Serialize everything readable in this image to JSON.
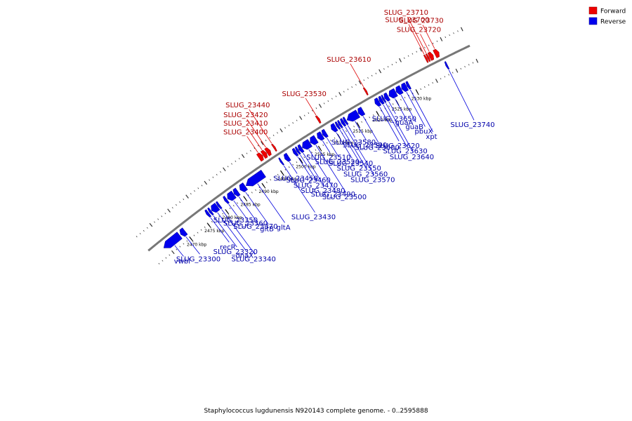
{
  "legend": {
    "forward": {
      "label": "Forward",
      "color": "#ee0000"
    },
    "reverse": {
      "label": "Reverse",
      "color": "#0000ee"
    }
  },
  "caption": "Staphylococcus lugdunensis N920143 complete genome. - 0..2595888",
  "axis": {
    "unit": "kbp",
    "ticks": [
      {
        "kbp": 2470,
        "label": "2470 kbp"
      },
      {
        "kbp": 2475,
        "label": "2475 kbp"
      },
      {
        "kbp": 2480,
        "label": "2480 kbp"
      },
      {
        "kbp": 2485,
        "label": "2485 kbp"
      },
      {
        "kbp": 2490,
        "label": "2490 kbp"
      },
      {
        "kbp": 2495,
        "label": "2495 kbp"
      },
      {
        "kbp": 2500,
        "label": "2500 kbp"
      },
      {
        "kbp": 2505,
        "label": "2505 kbp"
      },
      {
        "kbp": 2510,
        "label": "2510 kbp"
      },
      {
        "kbp": 2515,
        "label": "2515 kbp"
      },
      {
        "kbp": 2520,
        "label": "2520 kbp"
      },
      {
        "kbp": 2525,
        "label": "2525 kbp"
      },
      {
        "kbp": 2530,
        "label": "2530 kbp"
      }
    ]
  },
  "genes": [
    {
      "name": "vwbl",
      "strand": "reverse",
      "start": 2464.0,
      "end": 2468.5
    },
    {
      "name": "SLUG_23300",
      "strand": "reverse",
      "start": 2468.8,
      "end": 2470.0
    },
    {
      "name": "recR",
      "strand": "reverse",
      "start": 2476.0,
      "end": 2476.6
    },
    {
      "name": "SLUG_23320",
      "strand": "reverse",
      "start": 2476.8,
      "end": 2477.3
    },
    {
      "name": "dnaX",
      "strand": "reverse",
      "start": 2477.4,
      "end": 2479.0
    },
    {
      "name": "SLUG_23340",
      "strand": "reverse",
      "start": 2479.1,
      "end": 2479.6
    },
    {
      "name": "SLUG_23350",
      "strand": "reverse",
      "start": 2481.0,
      "end": 2481.6
    },
    {
      "name": "SLUG_23360",
      "strand": "reverse",
      "start": 2481.8,
      "end": 2483.5
    },
    {
      "name": "SLUG_23370",
      "strand": "reverse",
      "start": 2483.6,
      "end": 2484.6
    },
    {
      "name": "gltB",
      "strand": "reverse",
      "start": 2485.2,
      "end": 2486.6
    },
    {
      "name": "gltA",
      "strand": "reverse",
      "start": 2486.8,
      "end": 2491.5
    },
    {
      "name": "SLUG_23400",
      "strand": "forward",
      "start": 2492.6,
      "end": 2493.6
    },
    {
      "name": "SLUG_23410",
      "strand": "forward",
      "start": 2493.7,
      "end": 2494.6
    },
    {
      "name": "SLUG_23420",
      "strand": "forward",
      "start": 2494.7,
      "end": 2495.6
    },
    {
      "name": "SLUG_23430",
      "strand": "reverse",
      "start": 2496.0,
      "end": 2496.4
    },
    {
      "name": "SLUG_23440",
      "strand": "forward",
      "start": 2496.5,
      "end": 2496.9
    },
    {
      "name": "SLUG_23450",
      "strand": "reverse",
      "start": 2497.2,
      "end": 2498.2
    },
    {
      "name": "SLUG_23460",
      "strand": "reverse",
      "start": 2499.5,
      "end": 2500.2
    },
    {
      "name": "SLUG_23470",
      "strand": "reverse",
      "start": 2500.3,
      "end": 2500.8
    },
    {
      "name": "SLUG_23480",
      "strand": "reverse",
      "start": 2500.9,
      "end": 2501.7
    },
    {
      "name": "SLUG_23490",
      "strand": "reverse",
      "start": 2501.8,
      "end": 2503.8
    },
    {
      "name": "SLUG_23500",
      "strand": "reverse",
      "start": 2503.9,
      "end": 2505.4
    },
    {
      "name": "SLUG_23510",
      "strand": "reverse",
      "start": 2505.8,
      "end": 2507.0
    },
    {
      "name": "SLUG_23520",
      "strand": "reverse",
      "start": 2507.1,
      "end": 2508.0
    },
    {
      "name": "SLUG_23530",
      "strand": "forward",
      "start": 2507.9,
      "end": 2508.4
    },
    {
      "name": "SLUG_23540",
      "strand": "reverse",
      "start": 2509.4,
      "end": 2510.5
    },
    {
      "name": "SLUG_23550",
      "strand": "reverse",
      "start": 2510.7,
      "end": 2511.2
    },
    {
      "name": "SLUG_23560",
      "strand": "reverse",
      "start": 2511.3,
      "end": 2511.8
    },
    {
      "name": "SLUG_23570",
      "strand": "reverse",
      "start": 2512.0,
      "end": 2512.6
    },
    {
      "name": "SLUG_23580",
      "strand": "reverse",
      "start": 2512.7,
      "end": 2513.2
    },
    {
      "name": "SLUG_23590",
      "strand": "reverse",
      "start": 2513.4,
      "end": 2516.2
    },
    {
      "name": "SLUG_23600",
      "strand": "reverse",
      "start": 2516.3,
      "end": 2517.5
    },
    {
      "name": "SLUG_23610",
      "strand": "forward",
      "start": 2520.0,
      "end": 2520.4
    },
    {
      "name": "SLUG_23620",
      "strand": "reverse",
      "start": 2520.6,
      "end": 2521.6
    },
    {
      "name": "SLUG_23630",
      "strand": "reverse",
      "start": 2521.7,
      "end": 2522.4
    },
    {
      "name": "SLUG_23640",
      "strand": "reverse",
      "start": 2522.5,
      "end": 2522.9
    },
    {
      "name": "SLUG_23650",
      "strand": "reverse",
      "start": 2523.0,
      "end": 2523.9
    },
    {
      "name": "guaA",
      "strand": "reverse",
      "start": 2524.1,
      "end": 2525.8
    },
    {
      "name": "guaB",
      "strand": "reverse",
      "start": 2525.9,
      "end": 2527.2
    },
    {
      "name": "pbuX",
      "strand": "reverse",
      "start": 2527.3,
      "end": 2528.5
    },
    {
      "name": "xpt",
      "strand": "reverse",
      "start": 2528.6,
      "end": 2529.2
    },
    {
      "name": "SLUG_23700",
      "strand": "forward",
      "start": 2535.0,
      "end": 2535.4
    },
    {
      "name": "SLUG_23710",
      "strand": "forward",
      "start": 2535.5,
      "end": 2535.9
    },
    {
      "name": "SLUG_23720",
      "strand": "forward",
      "start": 2536.0,
      "end": 2536.9
    },
    {
      "name": "SLUG_23730",
      "strand": "forward",
      "start": 2537.3,
      "end": 2538.3
    },
    {
      "name": "SLUG_23740",
      "strand": "reverse",
      "start": 2538.3,
      "end": 2538.7
    }
  ]
}
